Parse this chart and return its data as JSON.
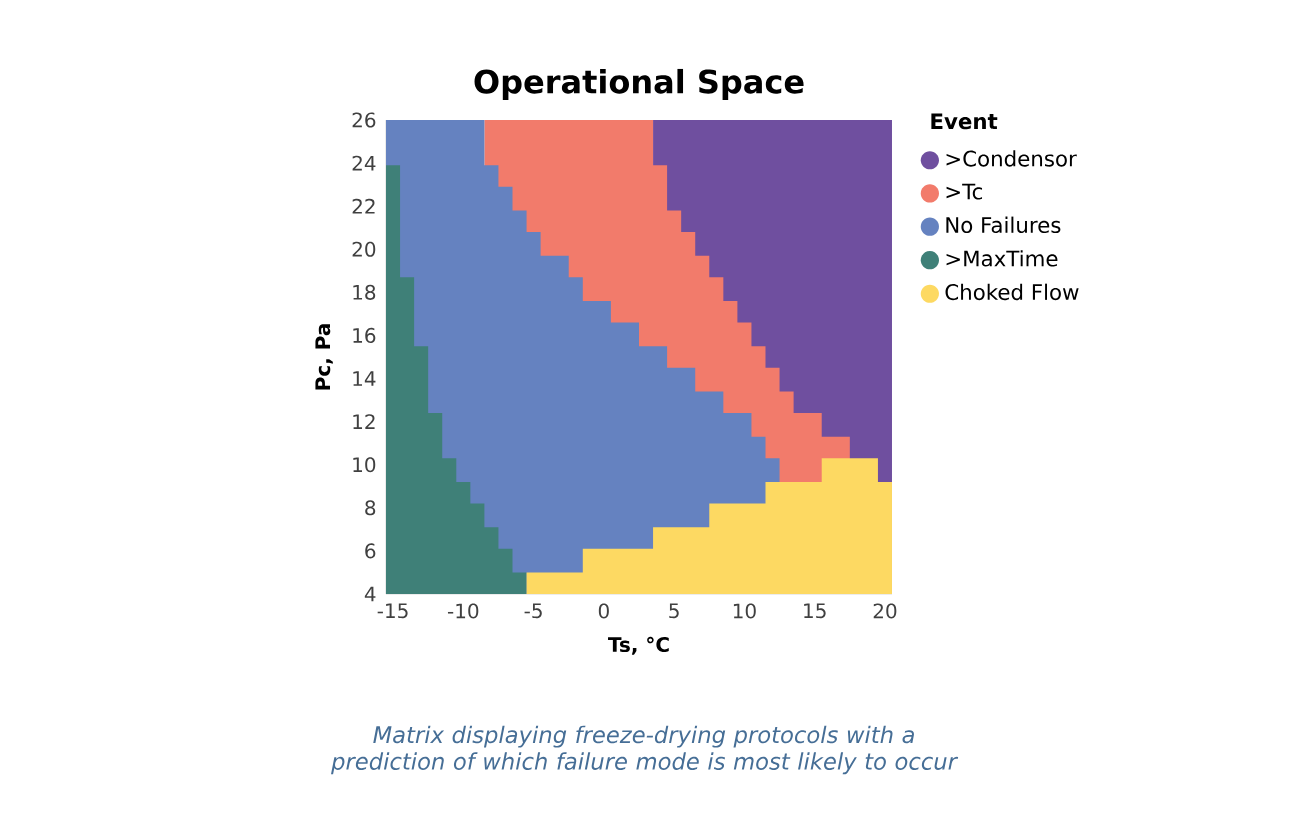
{
  "chart_data": {
    "type": "area",
    "title": "Operational Space",
    "xlabel": "Ts, °C",
    "ylabel": "Pc, Pa",
    "legend_title": "Event",
    "legend": "right",
    "line_style": "step",
    "x": [
      -15.5,
      -14.5,
      -13.5,
      -12.5,
      -11.5,
      -10.5,
      -9.5,
      -8.5,
      -7.5,
      -6.5,
      -5.5,
      -4.5,
      -3.5,
      -2.5,
      -1.5,
      -0.5,
      0.5,
      1.5,
      2.5,
      3.5,
      4.5,
      5.5,
      6.5,
      7.5,
      8.5,
      9.5,
      10.5,
      11.5,
      12.5,
      13.5,
      14.5,
      15.5,
      16.5,
      17.5,
      18.5,
      19.5,
      20.5
    ],
    "xlim": [
      -15.5,
      20.5
    ],
    "xticks": [
      -15,
      -10,
      -5,
      0,
      5,
      10,
      15,
      20
    ],
    "ylim": [
      4,
      26
    ],
    "yticks": [
      4,
      6,
      8,
      10,
      12,
      14,
      16,
      18,
      20,
      22,
      24,
      26
    ],
    "series": [
      {
        "name": ">Condensor",
        "color": "#6f4f9f",
        "values": [
          null,
          null,
          null,
          null,
          null,
          null,
          null,
          null,
          null,
          null,
          null,
          null,
          null,
          null,
          null,
          null,
          null,
          null,
          null,
          26,
          26,
          26,
          26,
          26,
          26,
          26,
          26,
          26,
          26,
          26,
          26,
          26,
          26,
          26,
          26,
          26,
          26
        ]
      },
      {
        "name": ">Tc",
        "color": "#f27b6b",
        "values": [
          null,
          null,
          null,
          null,
          null,
          null,
          null,
          26,
          26,
          26,
          26,
          26,
          26,
          26,
          26,
          26,
          26,
          26,
          26,
          23.9,
          21.8,
          20.8,
          19.7,
          18.7,
          17.6,
          16.6,
          15.5,
          14.5,
          13.4,
          12.4,
          12.4,
          11.3,
          11.3,
          11.3,
          null,
          null,
          null
        ]
      },
      {
        "name": "No Failures",
        "color": "#6582c0",
        "values": [
          26,
          26,
          26,
          26,
          26,
          26,
          26,
          23.9,
          22.9,
          21.8,
          20.8,
          19.7,
          19.7,
          18.7,
          17.6,
          17.6,
          16.6,
          16.6,
          15.5,
          15.5,
          14.5,
          14.5,
          13.4,
          13.4,
          12.4,
          12.4,
          11.3,
          10.3,
          10.3,
          null,
          null,
          null,
          null,
          null,
          null,
          null,
          null
        ]
      },
      {
        "name": ">MaxTime",
        "color": "#3f8078",
        "values": [
          23.9,
          18.7,
          15.5,
          12.4,
          10.3,
          9.2,
          8.2,
          7.1,
          6.1,
          5.0,
          5.0,
          null,
          null,
          null,
          null,
          null,
          null,
          null,
          null,
          null,
          null,
          null,
          null,
          null,
          null,
          null,
          null,
          null,
          null,
          null,
          null,
          null,
          null,
          null,
          null,
          null,
          null
        ]
      },
      {
        "name": "Choked Flow",
        "color": "#fdd962",
        "values": [
          null,
          null,
          null,
          null,
          null,
          null,
          null,
          null,
          null,
          null,
          5.0,
          5.0,
          5.0,
          5.0,
          6.1,
          6.1,
          6.1,
          6.1,
          6.1,
          7.1,
          7.1,
          7.1,
          7.1,
          8.2,
          8.2,
          8.2,
          8.2,
          9.2,
          9.2,
          9.2,
          9.2,
          10.3,
          10.3,
          10.3,
          10.3,
          9.2,
          9.2
        ]
      }
    ],
    "annotations": [
      "Matrix displaying freeze-drying protocols with a prediction of which failure mode is most likely to occur"
    ]
  }
}
